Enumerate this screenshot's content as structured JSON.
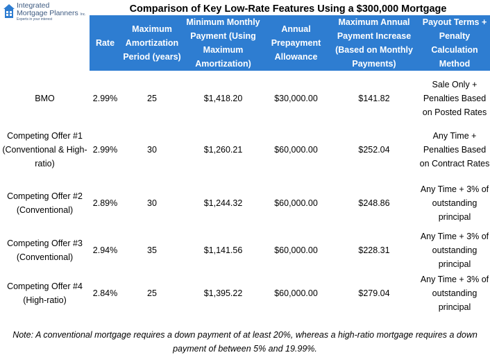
{
  "logo": {
    "brand_line1": "Integrated",
    "brand_line2": "Mortgage Planners",
    "brand_inc": "Inc.",
    "tagline": "Experts in your interest",
    "colors": {
      "roof": "#2e7dd1",
      "text": "#3d5a80"
    }
  },
  "title": "Comparison of Key Low-Rate Features Using a $300,000 Mortgage",
  "header_color": "#2e7dd1",
  "columns": [
    "Rate",
    "Maximum Amortization Period (years)",
    "Minimum Monthly Payment (Using Maximum Amortization)",
    "Annual Prepayment Allowance",
    "Maximum Annual Payment Increase (Based on Monthly Payments)",
    "Payout Terms + Penalty Calculation Method"
  ],
  "rows": [
    {
      "lender": "BMO",
      "rate": "2.99%",
      "amortization": "25",
      "payment": "$1,418.20",
      "prepayment": "$30,000.00",
      "increase": "$141.82",
      "payout": "Sale Only + Penalties Based on Posted Rates"
    },
    {
      "lender": "Competing Offer #1 (Conventional & High-ratio)",
      "rate": "2.99%",
      "amortization": "30",
      "payment": "$1,260.21",
      "prepayment": "$60,000.00",
      "increase": "$252.04",
      "payout": "Any Time + Penalties Based on Contract Rates"
    },
    {
      "lender": "Competing Offer #2 (Conventional)",
      "rate": "2.89%",
      "amortization": "30",
      "payment": "$1,244.32",
      "prepayment": "$60,000.00",
      "increase": "$248.86",
      "payout": "Any Time + 3% of outstanding principal"
    },
    {
      "lender": "Competing Offer #3 (Conventional)",
      "rate": "2.94%",
      "amortization": "35",
      "payment": "$1,141.56",
      "prepayment": "$60,000.00",
      "increase": "$228.31",
      "payout": "Any Time + 3% of outstanding principal"
    },
    {
      "lender": "Competing Offer #4 (High-ratio)",
      "rate": "2.84%",
      "amortization": "25",
      "payment": "$1,395.22",
      "prepayment": "$60,000.00",
      "increase": "$279.04",
      "payout": "Any Time + 3% of outstanding principal"
    }
  ],
  "note": "Note: A conventional mortgage requires a down payment of at least 20%, whereas a high-ratio mortgage requires a down payment of between 5% and 19.99%."
}
